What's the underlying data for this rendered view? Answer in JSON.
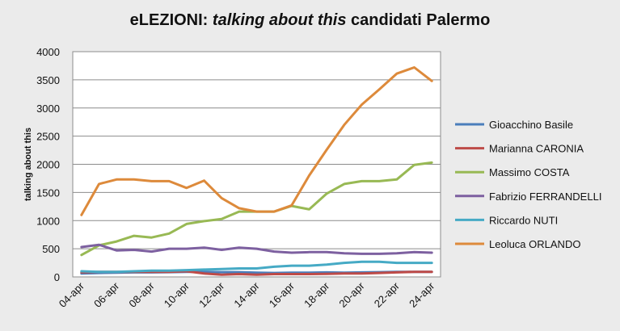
{
  "chart_data": {
    "type": "line",
    "title_parts": {
      "pre": "eLEZIONI: ",
      "italic": "talking about this",
      "post": " candidati Palermo"
    },
    "xlabel": "",
    "ylabel": "talking about this",
    "ylim": [
      0,
      4000
    ],
    "yticks": [
      0,
      500,
      1000,
      1500,
      2000,
      2500,
      3000,
      3500,
      4000
    ],
    "grid": true,
    "legend_position": "right",
    "categories": [
      "04-apr",
      "05-apr",
      "06-apr",
      "07-apr",
      "08-apr",
      "09-apr",
      "10-apr",
      "11-apr",
      "12-apr",
      "13-apr",
      "14-apr",
      "15-apr",
      "16-apr",
      "17-apr",
      "18-apr",
      "19-apr",
      "20-apr",
      "21-apr",
      "22-apr",
      "23-apr",
      "24-apr"
    ],
    "tick_labels": [
      "04-apr",
      "06-apr",
      "08-apr",
      "10-apr",
      "12-apr",
      "14-apr",
      "16-apr",
      "18-apr",
      "20-apr",
      "22-apr",
      "24-apr"
    ],
    "series": [
      {
        "name": "Gioacchino Basile",
        "color": "#4a7ebb",
        "values": [
          60,
          70,
          75,
          80,
          80,
          85,
          90,
          90,
          85,
          85,
          75,
          70,
          75,
          75,
          80,
          75,
          80,
          85,
          90,
          90,
          90
        ]
      },
      {
        "name": "Marianna CARONIA",
        "color": "#be4b48",
        "values": [
          80,
          90,
          90,
          90,
          90,
          90,
          100,
          60,
          40,
          50,
          40,
          50,
          50,
          50,
          55,
          60,
          60,
          70,
          80,
          90,
          90
        ]
      },
      {
        "name": "Massimo COSTA",
        "color": "#98b954",
        "values": [
          390,
          560,
          630,
          730,
          700,
          770,
          940,
          990,
          1030,
          1160,
          1160,
          1160,
          1260,
          1200,
          1480,
          1650,
          1700,
          1700,
          1730,
          1990,
          2030
        ]
      },
      {
        "name": "Fabrizio FERRANDELLI",
        "color": "#7d60a0",
        "values": [
          530,
          570,
          470,
          480,
          450,
          500,
          500,
          520,
          480,
          520,
          500,
          450,
          430,
          440,
          440,
          420,
          410,
          410,
          420,
          440,
          430
        ]
      },
      {
        "name": "Riccardo NUTI",
        "color": "#46aac5",
        "values": [
          100,
          90,
          90,
          100,
          110,
          110,
          120,
          130,
          140,
          150,
          150,
          180,
          200,
          200,
          220,
          250,
          270,
          270,
          250,
          250,
          250
        ]
      },
      {
        "name": "Leoluca ORLANDO",
        "color": "#dd8a3b",
        "values": [
          1100,
          1650,
          1730,
          1730,
          1700,
          1700,
          1580,
          1710,
          1400,
          1220,
          1160,
          1160,
          1270,
          1800,
          2260,
          2700,
          3060,
          3330,
          3610,
          3720,
          3480
        ]
      }
    ]
  }
}
